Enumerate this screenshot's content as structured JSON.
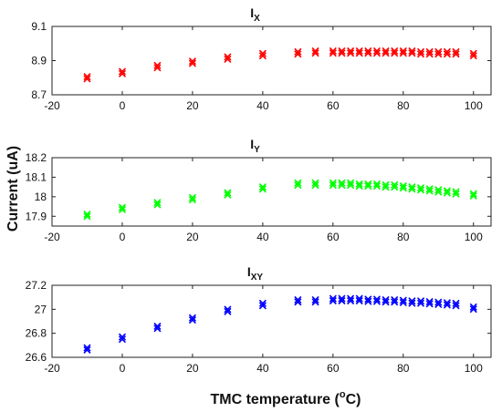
{
  "chart_data": {
    "type": "scatter",
    "xlabel": "TMC temperature (",
    "xlabel_sup": "o",
    "xlabel_tail": "C)",
    "ylabel": "Current (uA)",
    "panels": [
      {
        "title": "I",
        "title_sub": "X",
        "color": "#ff0000",
        "marker": "x",
        "xlim": [
          -20,
          105
        ],
        "ylim": [
          8.7,
          9.1
        ],
        "xticks": [
          -20,
          0,
          20,
          40,
          60,
          80,
          100
        ],
        "yticks": [
          8.7,
          8.9,
          9.1
        ],
        "ytick_labels": [
          "8.7",
          "8.9",
          "9.1"
        ],
        "x": [
          -10,
          0,
          10,
          20,
          30,
          40,
          50,
          55,
          60,
          62.5,
          65,
          67.5,
          70,
          72.5,
          75,
          77.5,
          80,
          82.5,
          85,
          87.5,
          90,
          92.5,
          95,
          100
        ],
        "values": [
          8.8,
          8.83,
          8.865,
          8.89,
          8.915,
          8.935,
          8.945,
          8.95,
          8.95,
          8.95,
          8.95,
          8.95,
          8.95,
          8.95,
          8.95,
          8.95,
          8.95,
          8.95,
          8.945,
          8.945,
          8.945,
          8.945,
          8.945,
          8.935
        ]
      },
      {
        "title": "I",
        "title_sub": "Y",
        "color": "#00ff00",
        "marker": "x",
        "xlim": [
          -20,
          105
        ],
        "ylim": [
          17.85,
          18.2
        ],
        "xticks": [
          -20,
          0,
          20,
          40,
          60,
          80,
          100
        ],
        "yticks": [
          17.9,
          18,
          18.1,
          18.2
        ],
        "ytick_labels": [
          "17.9",
          "18",
          "18.1",
          "18.2"
        ],
        "x": [
          -10,
          0,
          10,
          20,
          30,
          40,
          50,
          55,
          60,
          62.5,
          65,
          67.5,
          70,
          72.5,
          75,
          77.5,
          80,
          82.5,
          85,
          87.5,
          90,
          92.5,
          95,
          100
        ],
        "values": [
          17.905,
          17.94,
          17.965,
          17.99,
          18.015,
          18.045,
          18.065,
          18.065,
          18.065,
          18.065,
          18.065,
          18.06,
          18.06,
          18.06,
          18.055,
          18.055,
          18.05,
          18.045,
          18.04,
          18.035,
          18.03,
          18.025,
          18.02,
          18.01
        ]
      },
      {
        "title": "I",
        "title_sub": "XY",
        "color": "#0000ff",
        "marker": "x",
        "xlim": [
          -20,
          105
        ],
        "ylim": [
          26.6,
          27.2
        ],
        "xticks": [
          -20,
          0,
          20,
          40,
          60,
          80,
          100
        ],
        "yticks": [
          26.6,
          26.8,
          27,
          27.2
        ],
        "ytick_labels": [
          "26.6",
          "26.8",
          "27",
          "27.2"
        ],
        "x": [
          -10,
          0,
          10,
          20,
          30,
          40,
          50,
          55,
          60,
          62.5,
          65,
          67.5,
          70,
          72.5,
          75,
          77.5,
          80,
          82.5,
          85,
          87.5,
          90,
          92.5,
          95,
          100
        ],
        "values": [
          26.67,
          26.76,
          26.85,
          26.92,
          26.99,
          27.04,
          27.07,
          27.07,
          27.08,
          27.08,
          27.08,
          27.08,
          27.075,
          27.075,
          27.07,
          27.07,
          27.065,
          27.06,
          27.06,
          27.055,
          27.05,
          27.045,
          27.04,
          27.01
        ]
      }
    ]
  }
}
